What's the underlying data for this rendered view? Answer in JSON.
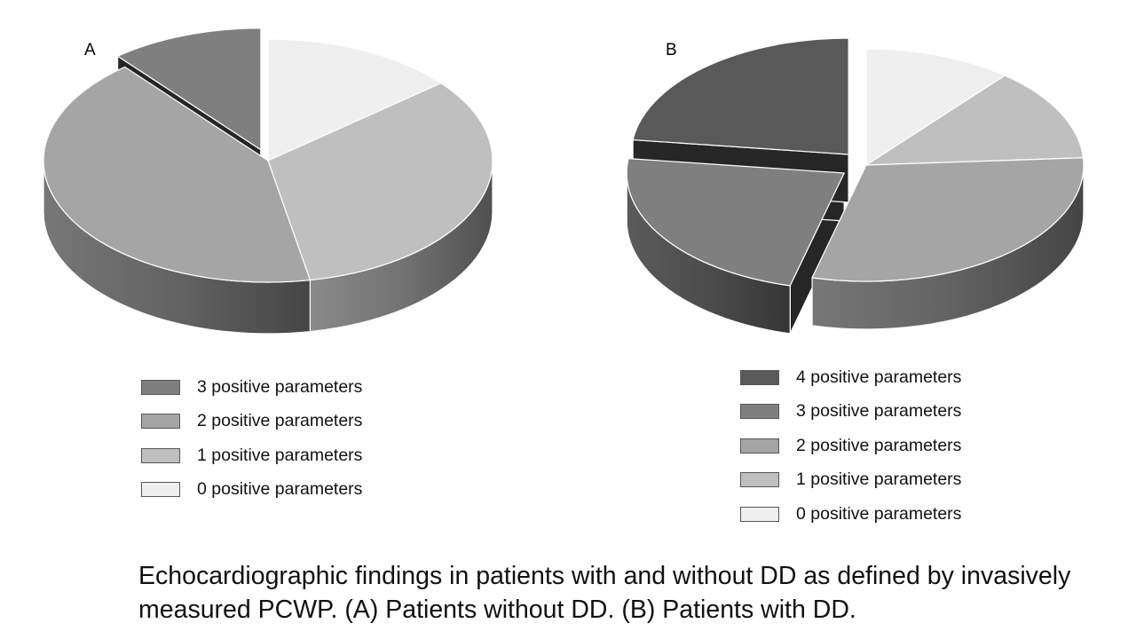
{
  "chart_data": [
    {
      "type": "pie",
      "panel_label": "A",
      "legend_placement": "bottom",
      "legend": [
        {
          "label": "3 positive parameters",
          "color": "#7f7f7f"
        },
        {
          "label": "2 positive parameters",
          "color": "#a5a5a5"
        },
        {
          "label": "1 positive parameters",
          "color": "#bfbfbf"
        },
        {
          "label": "0 positive parameters",
          "color": "#efefef"
        }
      ],
      "slices": [
        {
          "label": "0 positive parameters",
          "value": 14,
          "color": "#efefef",
          "exploded": false
        },
        {
          "label": "1 positive parameters",
          "value": 33,
          "color": "#bfbfbf",
          "exploded": false
        },
        {
          "label": "2 positive parameters",
          "value": 42,
          "color": "#a5a5a5",
          "exploded": false
        },
        {
          "label": "3 positive parameters",
          "value": 11,
          "color": "#7f7f7f",
          "exploded": true
        }
      ]
    },
    {
      "type": "pie",
      "panel_label": "B",
      "legend_placement": "bottom",
      "legend": [
        {
          "label": "4 positive parameters",
          "color": "#595959"
        },
        {
          "label": "3 positive parameters",
          "color": "#7f7f7f"
        },
        {
          "label": "2 positive parameters",
          "color": "#a5a5a5"
        },
        {
          "label": "1 positive parameters",
          "color": "#bfbfbf"
        },
        {
          "label": "0 positive parameters",
          "color": "#efefef"
        }
      ],
      "slices": [
        {
          "label": "0 positive parameters",
          "value": 11,
          "color": "#efefef",
          "exploded": false
        },
        {
          "label": "1 positive parameters",
          "value": 13,
          "color": "#bfbfbf",
          "exploded": false
        },
        {
          "label": "2 positive parameters",
          "value": 30,
          "color": "#a5a5a5",
          "exploded": false
        },
        {
          "label": "3 positive parameters",
          "value": 23,
          "color": "#7f7f7f",
          "exploded": true
        },
        {
          "label": "4 positive parameters",
          "value": 23,
          "color": "#595959",
          "exploded": true
        }
      ]
    }
  ],
  "caption": "Echocardiographic findings in patients with and without DD as defined by invasively measured PCWP. (A) Patients without DD. (B) Patients with DD."
}
